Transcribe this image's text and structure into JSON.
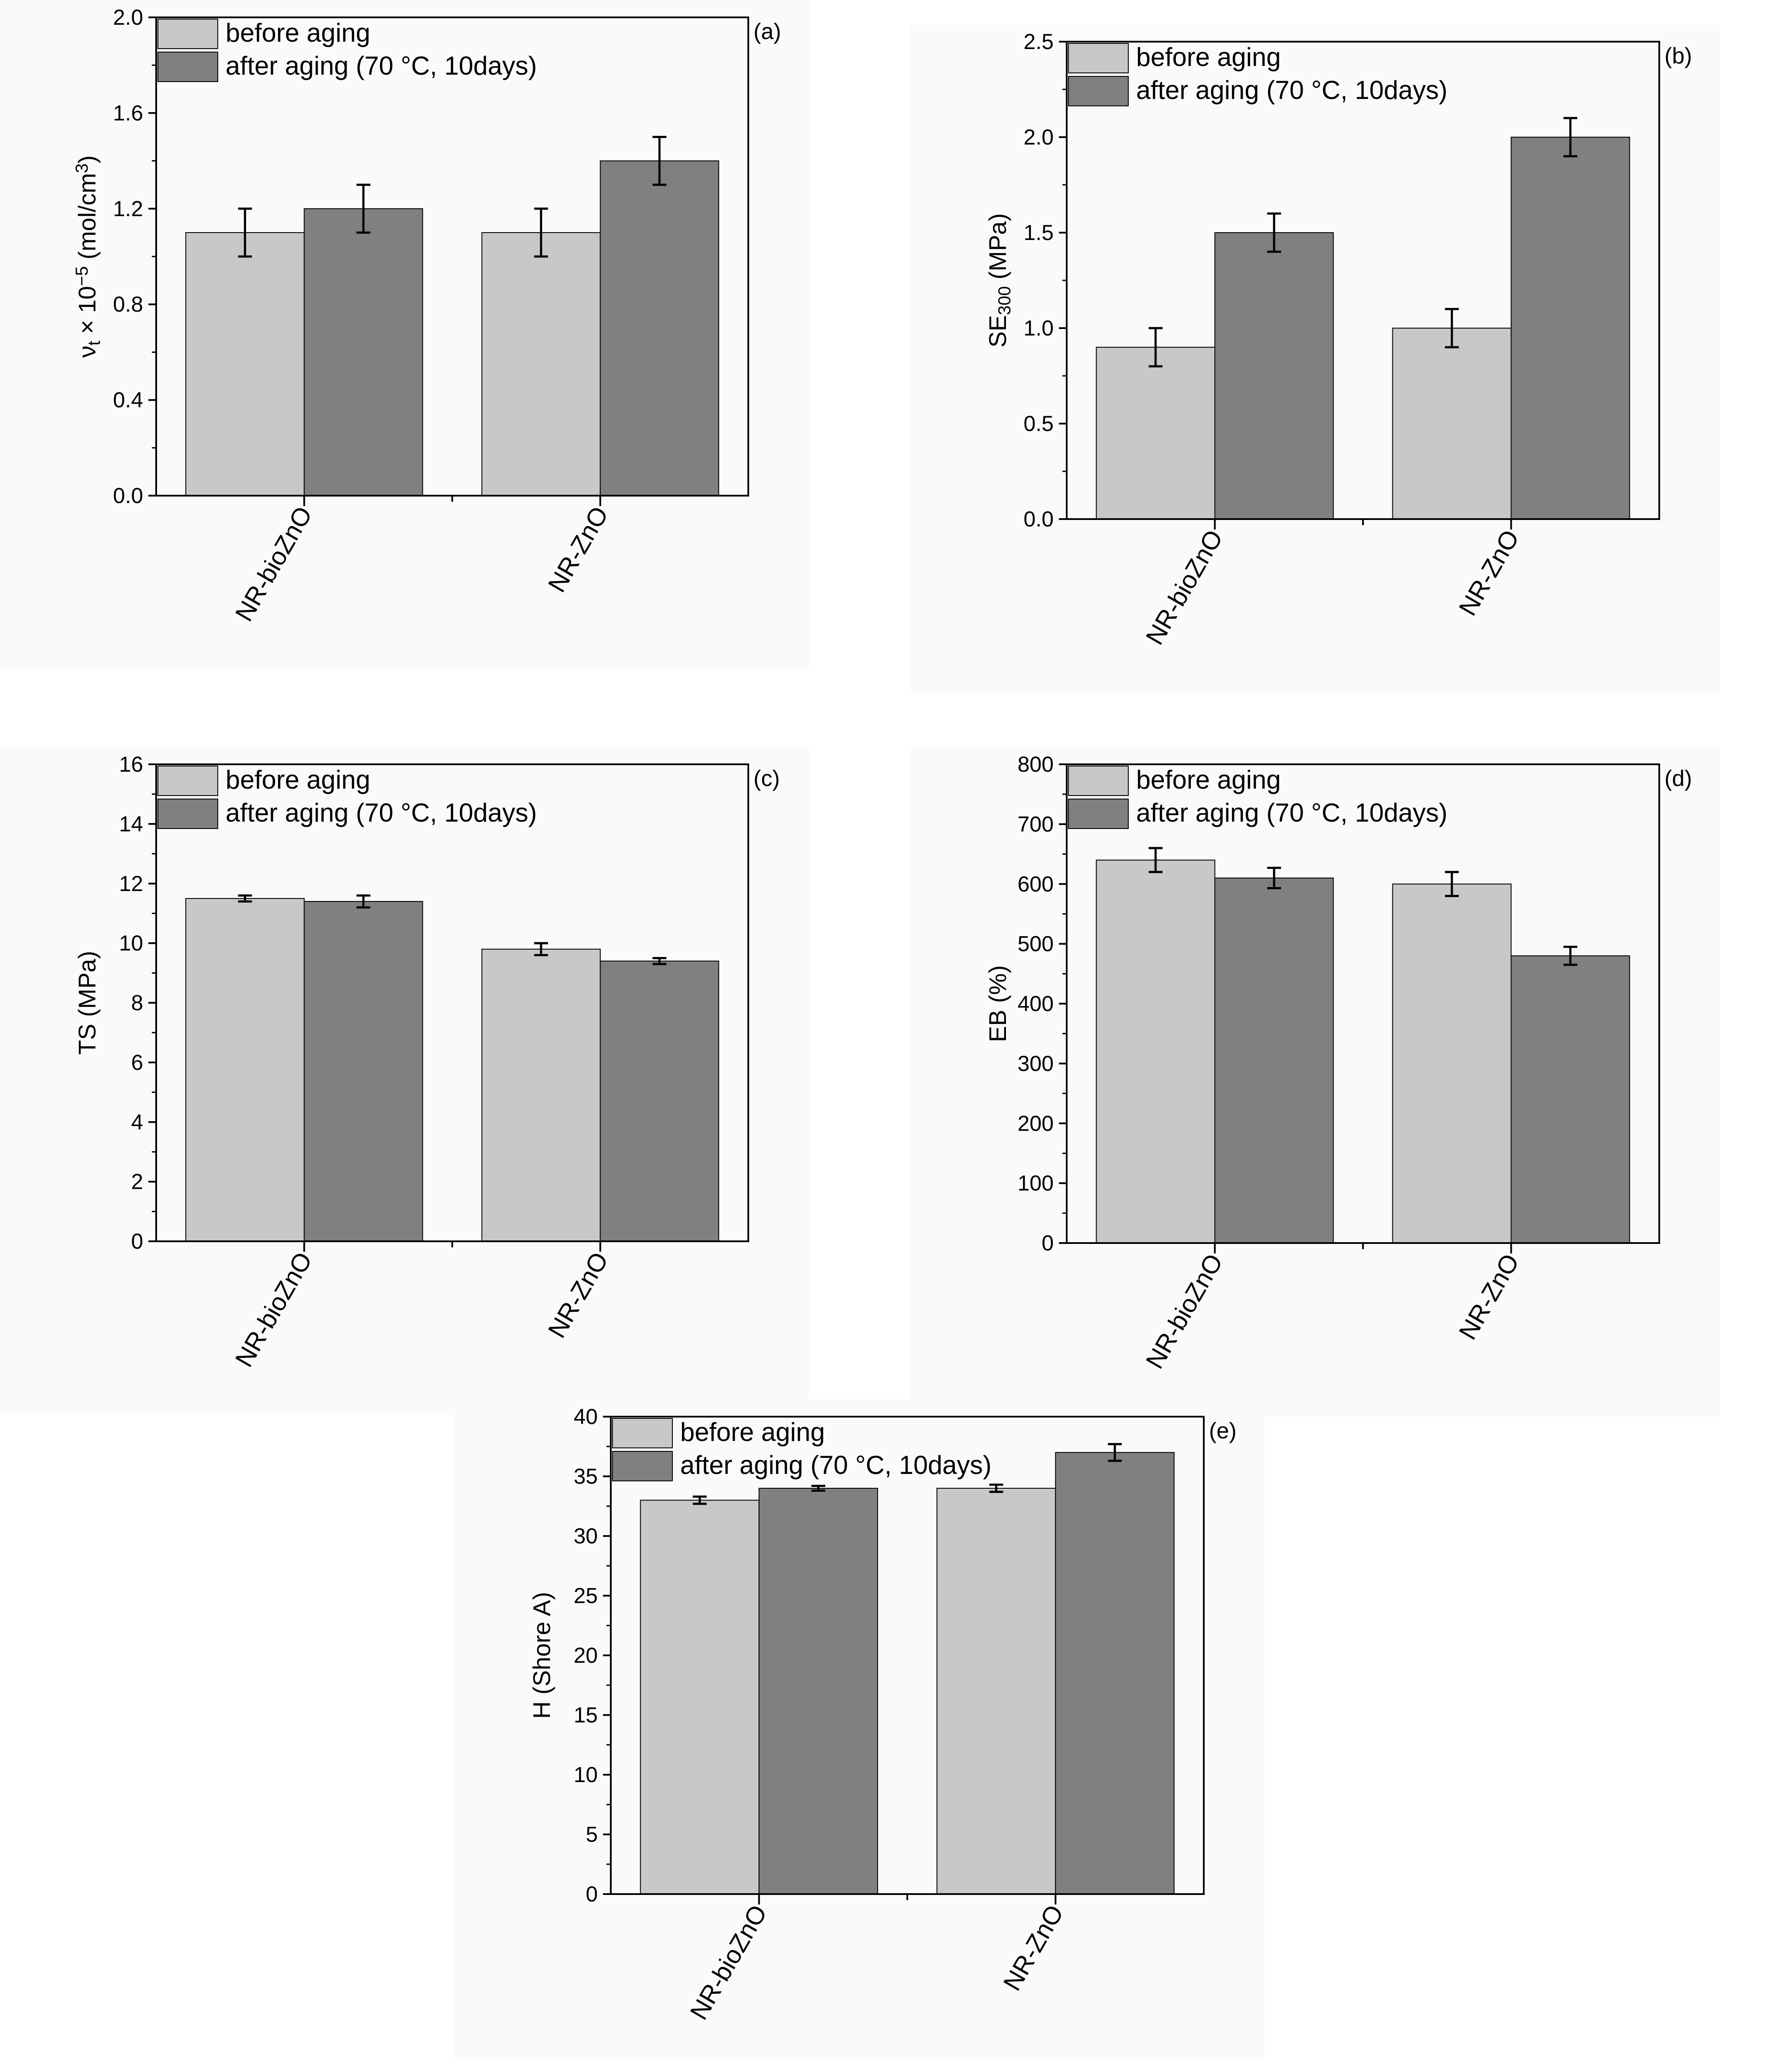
{
  "chart_data": [
    {
      "type": "bar",
      "panel_label": "(a)",
      "ylabel_parts": [
        "ν",
        "t",
        " × 10",
        "−5",
        " (mol/cm",
        "3",
        ")"
      ],
      "categories": [
        "NR-bioZnO",
        "NR-ZnO"
      ],
      "ylim": [
        0,
        2.0
      ],
      "yticks": [
        "0.0",
        "0.4",
        "0.8",
        "1.2",
        "1.6",
        "2.0"
      ],
      "series": [
        {
          "name": "before aging",
          "color": "#c8c8c8",
          "values": [
            1.1,
            1.1
          ],
          "errors": [
            0.1,
            0.1
          ]
        },
        {
          "name": "after aging (70 °C, 10days)",
          "color": "#808080",
          "values": [
            1.2,
            1.4
          ],
          "errors": [
            0.1,
            0.1
          ]
        }
      ]
    },
    {
      "type": "bar",
      "panel_label": "(b)",
      "ylabel_parts": [
        "SE",
        "300",
        " (MPa)"
      ],
      "categories": [
        "NR-bioZnO",
        "NR-ZnO"
      ],
      "ylim": [
        0,
        2.5
      ],
      "yticks": [
        "0.0",
        "0.5",
        "1.0",
        "1.5",
        "2.0",
        "2.5"
      ],
      "series": [
        {
          "name": "before aging",
          "color": "#c8c8c8",
          "values": [
            0.9,
            1.0
          ],
          "errors": [
            0.1,
            0.1
          ]
        },
        {
          "name": "after aging (70 °C, 10days)",
          "color": "#808080",
          "values": [
            1.5,
            2.0
          ],
          "errors": [
            0.1,
            0.1
          ]
        }
      ]
    },
    {
      "type": "bar",
      "panel_label": "(c)",
      "ylabel": "TS (MPa)",
      "categories": [
        "NR-bioZnO",
        "NR-ZnO"
      ],
      "ylim": [
        0,
        16
      ],
      "yticks": [
        "0",
        "2",
        "4",
        "6",
        "8",
        "10",
        "12",
        "14",
        "16"
      ],
      "series": [
        {
          "name": "before aging",
          "color": "#c8c8c8",
          "values": [
            11.5,
            9.8
          ],
          "errors": [
            0.1,
            0.2
          ]
        },
        {
          "name": "after aging (70 °C, 10days)",
          "color": "#808080",
          "values": [
            11.4,
            9.4
          ],
          "errors": [
            0.2,
            0.1
          ]
        }
      ]
    },
    {
      "type": "bar",
      "panel_label": "(d)",
      "ylabel": "EB (%)",
      "categories": [
        "NR-bioZnO",
        "NR-ZnO"
      ],
      "ylim": [
        0,
        800
      ],
      "yticks": [
        "0",
        "100",
        "200",
        "300",
        "400",
        "500",
        "600",
        "700",
        "800"
      ],
      "series": [
        {
          "name": "before aging",
          "color": "#c8c8c8",
          "values": [
            640,
            600
          ],
          "errors": [
            20,
            20
          ]
        },
        {
          "name": "after aging (70 °C, 10days)",
          "color": "#808080",
          "values": [
            610,
            480
          ],
          "errors": [
            17,
            15
          ]
        }
      ]
    },
    {
      "type": "bar",
      "panel_label": "(e)",
      "ylabel": "H (Shore A)",
      "categories": [
        "NR-bioZnO",
        "NR-ZnO"
      ],
      "ylim": [
        0,
        40
      ],
      "yticks": [
        "0",
        "5",
        "10",
        "15",
        "20",
        "25",
        "30",
        "35",
        "40"
      ],
      "series": [
        {
          "name": "before aging",
          "color": "#c8c8c8",
          "values": [
            33,
            34
          ],
          "errors": [
            0.3,
            0.3
          ]
        },
        {
          "name": "after aging (70 °C, 10days)",
          "color": "#808080",
          "values": [
            34,
            37
          ],
          "errors": [
            0.2,
            0.7
          ]
        }
      ]
    }
  ]
}
